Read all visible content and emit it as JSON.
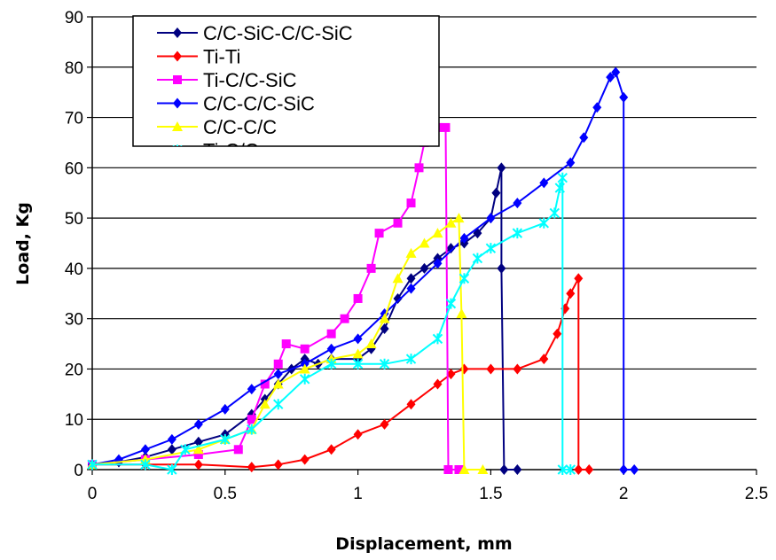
{
  "chart_data": {
    "type": "line",
    "title": "",
    "xlabel": "Displacement, mm",
    "ylabel": "Load, Kg",
    "xlim": [
      0,
      2.5
    ],
    "ylim": [
      0,
      90
    ],
    "x_ticks": [
      "0",
      "0.5",
      "1",
      "1.5",
      "2",
      "2.5"
    ],
    "y_ticks": [
      "0",
      "10",
      "20",
      "30",
      "40",
      "50",
      "60",
      "70",
      "80",
      "90"
    ],
    "grid": "horizontal",
    "legend_position": "top-left",
    "series": [
      {
        "name": "C/C-SiC-C/C-SiC",
        "color": "#000080",
        "marker": "diamond",
        "points": [
          [
            0,
            1
          ],
          [
            0.1,
            1.5
          ],
          [
            0.2,
            2.5
          ],
          [
            0.3,
            4
          ],
          [
            0.4,
            5.5
          ],
          [
            0.5,
            7
          ],
          [
            0.6,
            11
          ],
          [
            0.65,
            14
          ],
          [
            0.7,
            17
          ],
          [
            0.75,
            20
          ],
          [
            0.8,
            22
          ],
          [
            0.85,
            21
          ],
          [
            0.9,
            22
          ],
          [
            1.0,
            22
          ],
          [
            1.05,
            24
          ],
          [
            1.1,
            28
          ],
          [
            1.15,
            34
          ],
          [
            1.2,
            38
          ],
          [
            1.25,
            40
          ],
          [
            1.3,
            42
          ],
          [
            1.35,
            44
          ],
          [
            1.4,
            45
          ],
          [
            1.45,
            47
          ],
          [
            1.5,
            50
          ],
          [
            1.52,
            55
          ],
          [
            1.54,
            60
          ],
          [
            1.54,
            40
          ],
          [
            1.55,
            0
          ],
          [
            1.6,
            0
          ]
        ]
      },
      {
        "name": "Ti-Ti",
        "color": "#ff0000",
        "marker": "diamond",
        "points": [
          [
            0,
            1
          ],
          [
            0.2,
            1
          ],
          [
            0.4,
            1
          ],
          [
            0.6,
            0.5
          ],
          [
            0.7,
            1
          ],
          [
            0.8,
            2
          ],
          [
            0.9,
            4
          ],
          [
            1.0,
            7
          ],
          [
            1.1,
            9
          ],
          [
            1.2,
            13
          ],
          [
            1.3,
            17
          ],
          [
            1.35,
            19
          ],
          [
            1.4,
            20
          ],
          [
            1.5,
            20
          ],
          [
            1.6,
            20
          ],
          [
            1.7,
            22
          ],
          [
            1.75,
            27
          ],
          [
            1.78,
            32
          ],
          [
            1.8,
            35
          ],
          [
            1.83,
            38
          ],
          [
            1.83,
            0
          ],
          [
            1.87,
            0
          ]
        ]
      },
      {
        "name": "Ti-C/C-SiC",
        "color": "#ff00ff",
        "marker": "square",
        "points": [
          [
            0,
            1
          ],
          [
            0.2,
            2
          ],
          [
            0.4,
            3
          ],
          [
            0.55,
            4
          ],
          [
            0.6,
            10
          ],
          [
            0.65,
            17
          ],
          [
            0.7,
            21
          ],
          [
            0.73,
            25
          ],
          [
            0.8,
            24
          ],
          [
            0.9,
            27
          ],
          [
            0.95,
            30
          ],
          [
            1.0,
            34
          ],
          [
            1.05,
            40
          ],
          [
            1.08,
            47
          ],
          [
            1.15,
            49
          ],
          [
            1.2,
            53
          ],
          [
            1.23,
            60
          ],
          [
            1.25,
            65
          ],
          [
            1.3,
            68
          ],
          [
            1.33,
            68
          ],
          [
            1.34,
            0
          ],
          [
            1.38,
            0
          ]
        ]
      },
      {
        "name": "C/C-C/C-SiC",
        "color": "#0000ff",
        "marker": "diamond",
        "points": [
          [
            0,
            1
          ],
          [
            0.1,
            2
          ],
          [
            0.2,
            4
          ],
          [
            0.3,
            6
          ],
          [
            0.4,
            9
          ],
          [
            0.5,
            12
          ],
          [
            0.6,
            16
          ],
          [
            0.7,
            19
          ],
          [
            0.8,
            21
          ],
          [
            0.9,
            24
          ],
          [
            1.0,
            26
          ],
          [
            1.1,
            31
          ],
          [
            1.2,
            36
          ],
          [
            1.3,
            41
          ],
          [
            1.4,
            46
          ],
          [
            1.5,
            50
          ],
          [
            1.6,
            53
          ],
          [
            1.7,
            57
          ],
          [
            1.8,
            61
          ],
          [
            1.85,
            66
          ],
          [
            1.9,
            72
          ],
          [
            1.95,
            78
          ],
          [
            1.97,
            79
          ],
          [
            2.0,
            74
          ],
          [
            2.0,
            0
          ],
          [
            2.04,
            0
          ]
        ]
      },
      {
        "name": "C/C-C/C",
        "color": "#ffff00",
        "marker": "triangle",
        "points": [
          [
            0,
            1
          ],
          [
            0.2,
            2
          ],
          [
            0.4,
            4
          ],
          [
            0.5,
            6
          ],
          [
            0.6,
            8
          ],
          [
            0.65,
            13
          ],
          [
            0.7,
            17
          ],
          [
            0.8,
            20
          ],
          [
            0.9,
            22
          ],
          [
            1.0,
            23
          ],
          [
            1.05,
            25
          ],
          [
            1.1,
            30
          ],
          [
            1.15,
            38
          ],
          [
            1.2,
            43
          ],
          [
            1.25,
            45
          ],
          [
            1.3,
            47
          ],
          [
            1.35,
            49
          ],
          [
            1.38,
            50
          ],
          [
            1.39,
            31
          ],
          [
            1.4,
            0
          ],
          [
            1.47,
            0
          ]
        ]
      },
      {
        "name": "Ti-C/C",
        "color": "#00ffff",
        "marker": "star",
        "points": [
          [
            0,
            1
          ],
          [
            0.2,
            1
          ],
          [
            0.3,
            0
          ],
          [
            0.35,
            4
          ],
          [
            0.5,
            6
          ],
          [
            0.6,
            8
          ],
          [
            0.7,
            13
          ],
          [
            0.8,
            18
          ],
          [
            0.9,
            21
          ],
          [
            1.0,
            21
          ],
          [
            1.1,
            21
          ],
          [
            1.2,
            22
          ],
          [
            1.3,
            26
          ],
          [
            1.35,
            33
          ],
          [
            1.4,
            38
          ],
          [
            1.45,
            42
          ],
          [
            1.5,
            44
          ],
          [
            1.6,
            47
          ],
          [
            1.7,
            49
          ],
          [
            1.74,
            51
          ],
          [
            1.76,
            56
          ],
          [
            1.77,
            58
          ],
          [
            1.77,
            0
          ],
          [
            1.8,
            0
          ]
        ]
      }
    ]
  }
}
